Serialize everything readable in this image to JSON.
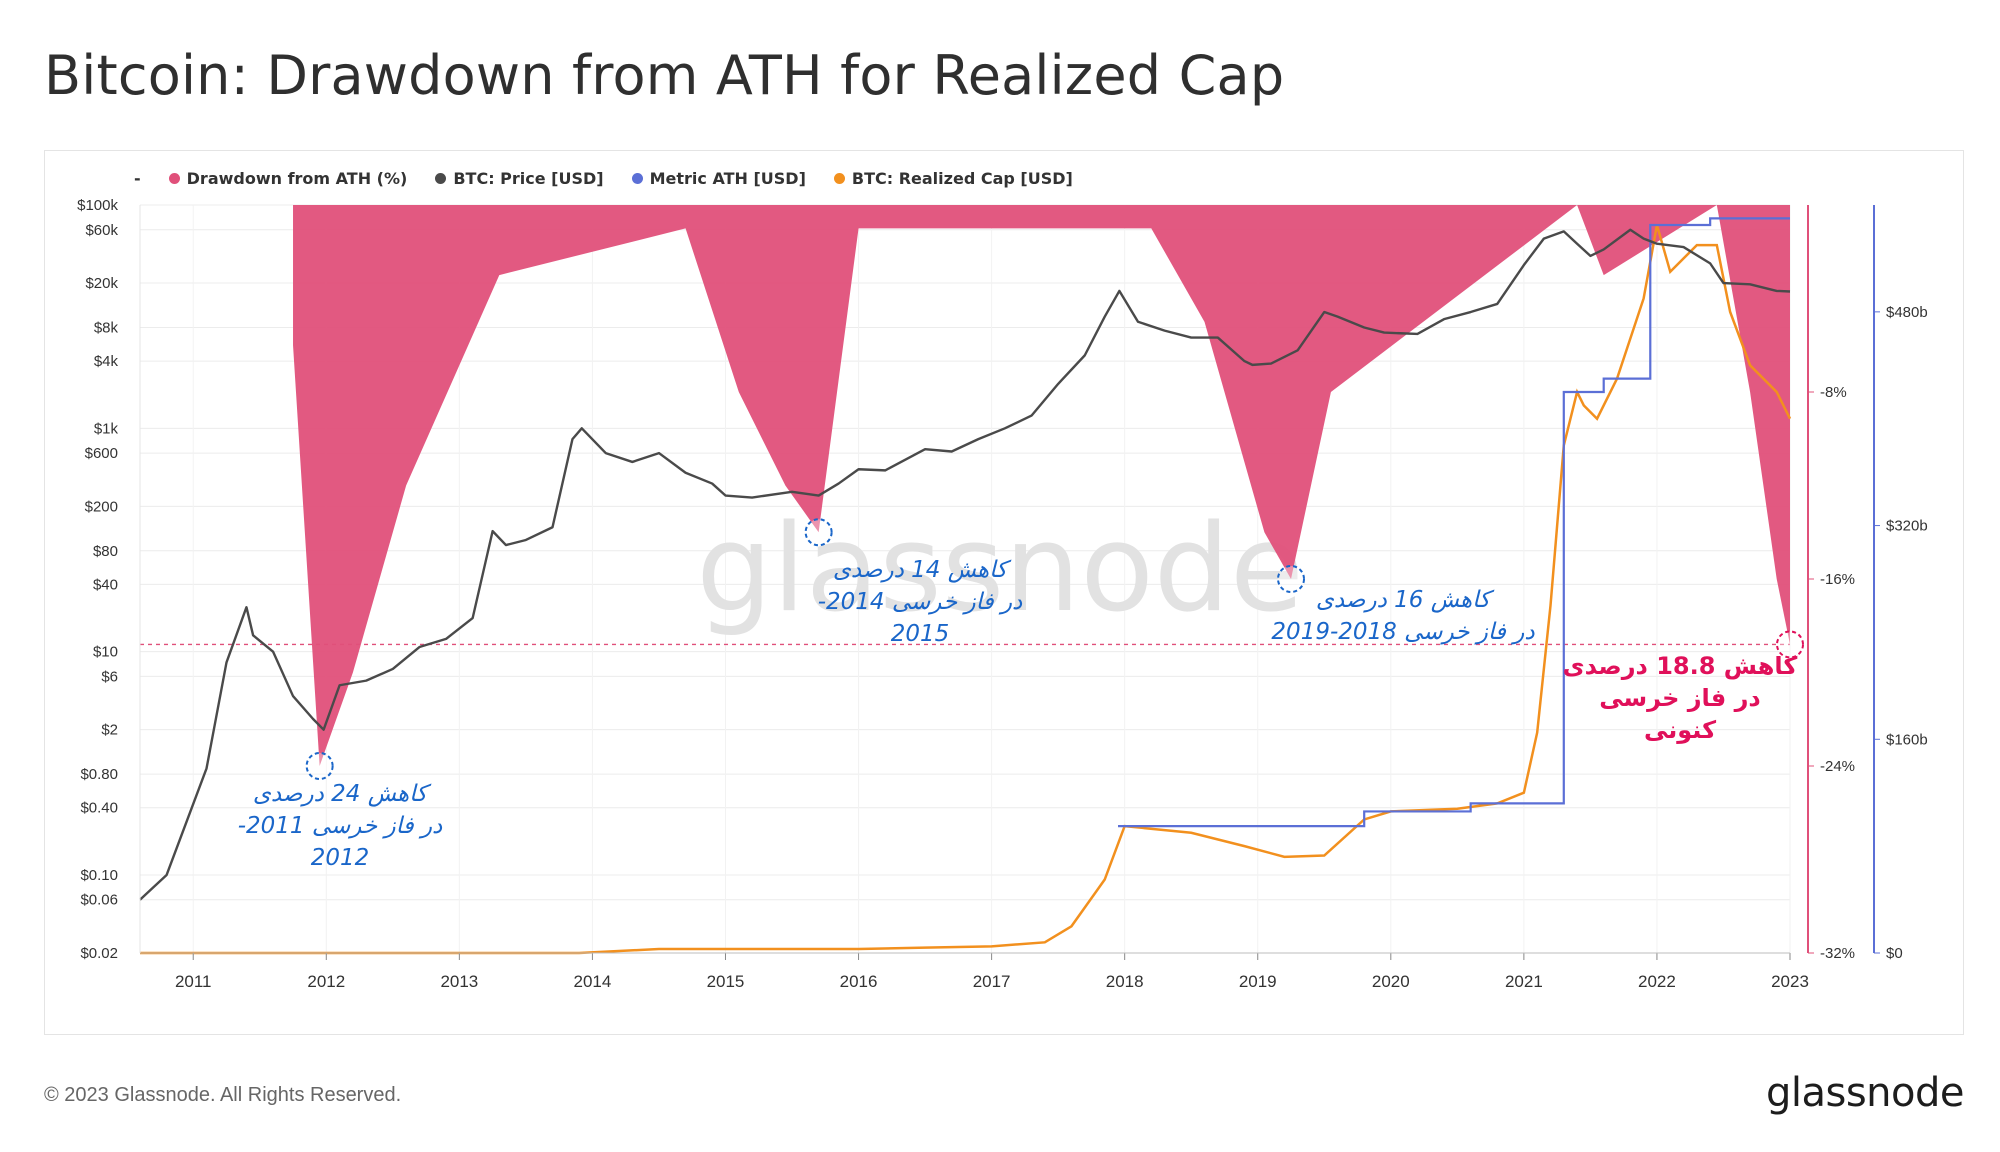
{
  "title": "Bitcoin: Drawdown from ATH for Realized Cap",
  "footer": "© 2023 Glassnode. All Rights Reserved.",
  "brand": "glassnode",
  "watermark": "glassnode",
  "colors": {
    "drawdown": "#e0507a",
    "price": "#4a4a4a",
    "metric_ath": "#5b6fd6",
    "realized_cap": "#f2901e",
    "annotation_blue": "#1a66c9",
    "annotation_red": "#e0105a"
  },
  "legend": {
    "dash": "-",
    "items": [
      {
        "label": "Drawdown from ATH (%)",
        "color": "#e0507a"
      },
      {
        "label": "BTC: Price [USD]",
        "color": "#4a4a4a"
      },
      {
        "label": "Metric ATH [USD]",
        "color": "#5b6fd6"
      },
      {
        "label": "BTC: Realized Cap [USD]",
        "color": "#f2901e"
      }
    ]
  },
  "annotations": [
    {
      "line1": "کاهش 24 درصدی",
      "line2": "در فاز خرسی 2011-2012",
      "color": "blue"
    },
    {
      "line1": "کاهش 14 درصدی",
      "line2": "در فاز خرسی 2014-2015",
      "color": "blue"
    },
    {
      "line1": "کاهش 16 درصدی",
      "line2": "در فاز خرسی 2018-2019",
      "color": "blue"
    },
    {
      "line1": "کاهش 18.8 درصدی",
      "line2": "در فاز خرسی کنونی",
      "color": "red"
    }
  ],
  "chart_data": {
    "type": "line",
    "x_axis": {
      "ticks": [
        "2011",
        "2012",
        "2013",
        "2014",
        "2015",
        "2016",
        "2017",
        "2018",
        "2019",
        "2020",
        "2021",
        "2022",
        "2023"
      ]
    },
    "y_left_price": {
      "scale": "log",
      "ticks": [
        "$100k",
        "$60k",
        "$20k",
        "$8k",
        "$4k",
        "$1k",
        "$600",
        "$200",
        "$80",
        "$40",
        "$10",
        "$6",
        "$2",
        "$0.80",
        "$0.40",
        "$0.10",
        "$0.06",
        "$0.02"
      ],
      "ylim": [
        0.02,
        100000
      ]
    },
    "y_right_drawdown": {
      "ticks": [
        "-8%",
        "-16%",
        "-24%",
        "-32%"
      ],
      "ylim": [
        -32,
        0
      ]
    },
    "y_right_realized_cap": {
      "ticks": [
        "$480b",
        "$320b",
        "$160b",
        "$0"
      ],
      "ylim": [
        0,
        560
      ]
    },
    "series": [
      {
        "name": "BTC: Price [USD]",
        "x": [
          2010.6,
          2010.8,
          2010.95,
          2011.1,
          2011.25,
          2011.4,
          2011.45,
          2011.6,
          2011.75,
          2011.9,
          2011.98,
          2012.1,
          2012.3,
          2012.5,
          2012.7,
          2012.9,
          2013.1,
          2013.25,
          2013.35,
          2013.5,
          2013.7,
          2013.85,
          2013.92,
          2014.1,
          2014.3,
          2014.5,
          2014.7,
          2014.9,
          2015.0,
          2015.2,
          2015.5,
          2015.7,
          2015.85,
          2016.0,
          2016.2,
          2016.5,
          2016.7,
          2016.9,
          2017.1,
          2017.3,
          2017.5,
          2017.7,
          2017.85,
          2017.96,
          2018.1,
          2018.3,
          2018.5,
          2018.7,
          2018.9,
          2018.96,
          2019.1,
          2019.3,
          2019.5,
          2019.6,
          2019.8,
          2019.95,
          2020.2,
          2020.4,
          2020.6,
          2020.8,
          2021.0,
          2021.15,
          2021.3,
          2021.4,
          2021.5,
          2021.6,
          2021.8,
          2021.9,
          2022.0,
          2022.2,
          2022.4,
          2022.5,
          2022.7,
          2022.9,
          2023.0
        ],
        "values": [
          0.06,
          0.1,
          0.3,
          0.9,
          8,
          25,
          14,
          10,
          4,
          2.5,
          2,
          5,
          5.5,
          7,
          11,
          13,
          20,
          120,
          90,
          100,
          130,
          800,
          1000,
          600,
          500,
          600,
          400,
          320,
          250,
          240,
          270,
          250,
          320,
          430,
          420,
          650,
          620,
          800,
          1000,
          1300,
          2500,
          4500,
          10000,
          17000,
          9000,
          7500,
          6500,
          6500,
          4000,
          3700,
          3800,
          5000,
          11000,
          10000,
          8000,
          7200,
          7000,
          9500,
          11000,
          13000,
          29000,
          50000,
          58000,
          45000,
          35000,
          40000,
          60000,
          50000,
          45000,
          42000,
          30000,
          20000,
          19500,
          17000,
          16800
        ]
      },
      {
        "name": "BTC: Realized Cap [USD]",
        "x": [
          2010.6,
          2013.9,
          2014.5,
          2016.0,
          2016.5,
          2017.0,
          2017.4,
          2017.6,
          2017.85,
          2018.0,
          2018.5,
          2018.9,
          2019.2,
          2019.5,
          2019.8,
          2020.0,
          2020.5,
          2020.8,
          2021.0,
          2021.1,
          2021.2,
          2021.3,
          2021.4,
          2021.45,
          2021.55,
          2021.7,
          2021.9,
          2022.0,
          2022.1,
          2022.3,
          2022.45,
          2022.55,
          2022.7,
          2022.9,
          2023.0
        ],
        "values": [
          0,
          0,
          3,
          3,
          4,
          5,
          8,
          20,
          55,
          95,
          90,
          80,
          72,
          73,
          100,
          106,
          108,
          112,
          120,
          165,
          260,
          380,
          420,
          410,
          400,
          430,
          490,
          545,
          510,
          530,
          530,
          480,
          440,
          420,
          400
        ]
      },
      {
        "name": "Metric ATH [USD]",
        "x": [
          2017.95,
          2019.55,
          2019.8,
          2020.6,
          2021.3,
          2021.6,
          2021.95,
          2022.0,
          2022.4,
          2023.0
        ],
        "values": [
          95,
          95,
          106,
          112,
          420,
          430,
          545,
          545,
          550,
          550
        ]
      },
      {
        "name": "Drawdown from ATH (%)",
        "x": [
          2011.75,
          2011.95,
          2012.2,
          2012.6,
          2013.3,
          2014.7,
          2015.1,
          2015.45,
          2015.7,
          2016.0,
          2018.2,
          2018.6,
          2019.05,
          2019.25,
          2019.55,
          2021.4,
          2021.6,
          2022.45,
          2022.7,
          2022.9,
          2023.0
        ],
        "values": [
          -6,
          -24,
          -20,
          -12,
          -3,
          -1,
          -8,
          -12,
          -14,
          -1,
          -1,
          -5,
          -14,
          -16,
          -8,
          0,
          -3,
          0,
          -8,
          -16,
          -18.8
        ]
      }
    ]
  }
}
